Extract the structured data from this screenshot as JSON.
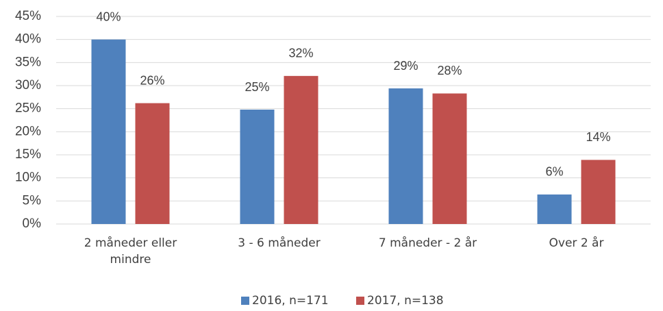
{
  "chart_data": {
    "type": "bar",
    "categories": [
      "2 måneder eller mindre",
      "3 - 6 måneder",
      "7 måneder - 2 år",
      "Over 2 år"
    ],
    "series": [
      {
        "name": "2016, n=171",
        "color": "#4f81bd",
        "values": [
          40,
          24.8,
          29.4,
          6.4
        ],
        "value_labels": [
          "40%",
          "25%",
          "29%",
          "6%"
        ]
      },
      {
        "name": "2017, n=138",
        "color": "#c0504d",
        "values": [
          26.2,
          32.1,
          28.3,
          13.9
        ],
        "value_labels": [
          "26%",
          "32%",
          "28%",
          "14%"
        ]
      }
    ],
    "ylim": [
      0,
      45
    ],
    "yticks": [
      {
        "value": 0,
        "label": "0%"
      },
      {
        "value": 5,
        "label": "5%"
      },
      {
        "value": 10,
        "label": "10%"
      },
      {
        "value": 15,
        "label": "15%"
      },
      {
        "value": 20,
        "label": "20%"
      },
      {
        "value": 25,
        "label": "25%"
      },
      {
        "value": 30,
        "label": "30%"
      },
      {
        "value": 35,
        "label": "35%"
      },
      {
        "value": 40,
        "label": "40%"
      },
      {
        "value": 45,
        "label": "45%"
      }
    ],
    "grid": true,
    "legend": "bottom"
  }
}
